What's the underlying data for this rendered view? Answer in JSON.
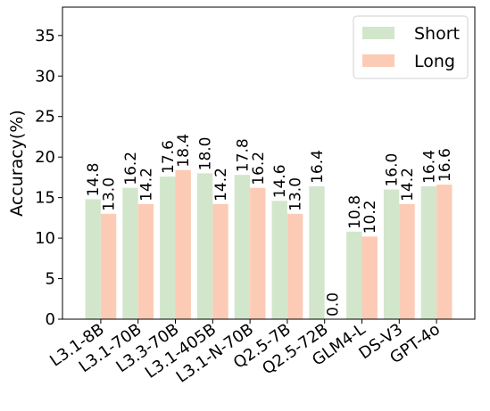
{
  "chart_data": {
    "type": "bar",
    "ylabel": "Accuracy(%)",
    "ylim": [
      0,
      38.5
    ],
    "yticks": [
      0,
      5,
      10,
      15,
      20,
      25,
      30,
      35
    ],
    "categories": [
      "L3.1-8B",
      "L3.1-70B",
      "L3.3-70B",
      "L3.1-405B",
      "L3.1-N-70B",
      "Q2.5-7B",
      "Q2.5-72B",
      "GLM4-L",
      "DS-V3",
      "GPT-4o"
    ],
    "series": [
      {
        "name": "Short",
        "color": "#d2e6cc",
        "values": [
          14.8,
          16.2,
          17.6,
          18.0,
          17.8,
          14.6,
          16.4,
          10.8,
          16.0,
          16.4
        ],
        "labels": [
          "14.8",
          "16.2",
          "17.6",
          "18.0",
          "17.8",
          "14.6",
          "16.4",
          "10.8",
          "16.0",
          "16.4"
        ]
      },
      {
        "name": "Long",
        "color": "#fccbb6",
        "values": [
          13.0,
          14.2,
          18.4,
          14.2,
          16.2,
          13.0,
          0.0,
          10.2,
          14.2,
          16.6
        ],
        "labels": [
          "13.0",
          "14.2",
          "18.4",
          "14.2",
          "16.2",
          "13.0",
          "0.0",
          "10.2",
          "14.2",
          "16.6"
        ]
      }
    ],
    "legend_position": "top-right",
    "grid": false
  }
}
